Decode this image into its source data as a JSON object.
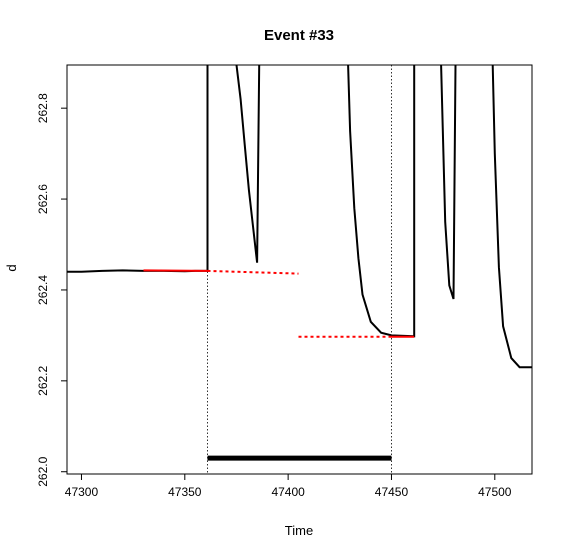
{
  "chart_data": {
    "type": "line",
    "title": "Event #33",
    "xlabel": "Time",
    "ylabel": "d",
    "xlim": [
      47293,
      47518
    ],
    "ylim": [
      261.995,
      262.895
    ],
    "x_ticks": [
      47300,
      47350,
      47400,
      47450,
      47500
    ],
    "y_ticks": [
      262.0,
      262.2,
      262.4,
      262.6,
      262.8
    ],
    "x_tick_labels": [
      "47300",
      "47350",
      "47400",
      "47450",
      "47500"
    ],
    "y_tick_labels": [
      "262.0",
      "262.2",
      "262.4",
      "262.6",
      "262.8"
    ],
    "grid": false,
    "legend": "none",
    "colors": {
      "series": "#000000",
      "fit": "#ff0000",
      "markers": "#000000"
    },
    "series": [
      {
        "style": "solid",
        "points": [
          [
            47293,
            262.44
          ],
          [
            47300,
            262.44
          ],
          [
            47310,
            262.442
          ],
          [
            47320,
            262.443
          ],
          [
            47330,
            262.442
          ],
          [
            47340,
            262.442
          ],
          [
            47350,
            262.441
          ],
          [
            47355,
            262.442
          ],
          [
            47361,
            262.442
          ],
          [
            47361,
            262.895
          ]
        ]
      },
      {
        "style": "solid",
        "points": [
          [
            47375,
            262.895
          ],
          [
            47377,
            262.82
          ],
          [
            47379,
            262.72
          ],
          [
            47381,
            262.62
          ],
          [
            47383,
            262.54
          ],
          [
            47385,
            262.46
          ],
          [
            47386,
            262.895
          ]
        ]
      },
      {
        "style": "solid",
        "points": [
          [
            47429,
            262.895
          ],
          [
            47430,
            262.75
          ],
          [
            47432,
            262.58
          ],
          [
            47434,
            262.47
          ],
          [
            47436,
            262.39
          ],
          [
            47440,
            262.33
          ],
          [
            47445,
            262.306
          ],
          [
            47450,
            262.3
          ],
          [
            47461,
            262.298
          ],
          [
            47461,
            262.895
          ]
        ]
      },
      {
        "style": "solid",
        "points": [
          [
            47474,
            262.895
          ],
          [
            47476,
            262.55
          ],
          [
            47478,
            262.41
          ],
          [
            47480,
            262.38
          ],
          [
            47481,
            262.895
          ]
        ]
      },
      {
        "style": "solid",
        "points": [
          [
            47499,
            262.895
          ],
          [
            47500,
            262.7
          ],
          [
            47502,
            262.45
          ],
          [
            47504,
            262.32
          ],
          [
            47508,
            262.25
          ],
          [
            47512,
            262.23
          ],
          [
            47518,
            262.23
          ]
        ]
      }
    ],
    "fit_lines": [
      {
        "style": "solid",
        "points": [
          [
            47330,
            262.443
          ],
          [
            47361,
            262.442
          ]
        ]
      },
      {
        "style": "dotted",
        "points": [
          [
            47361,
            262.442
          ],
          [
            47405,
            262.436
          ]
        ]
      },
      {
        "style": "solid",
        "points": [
          [
            47450,
            262.297
          ],
          [
            47461,
            262.297
          ]
        ]
      },
      {
        "style": "dotted",
        "points": [
          [
            47405,
            262.297
          ],
          [
            47450,
            262.297
          ]
        ]
      }
    ],
    "vertical_markers": [
      47361,
      47450
    ],
    "event_bar": {
      "x_start": 47361,
      "x_end": 47450,
      "y": 262.03
    }
  }
}
